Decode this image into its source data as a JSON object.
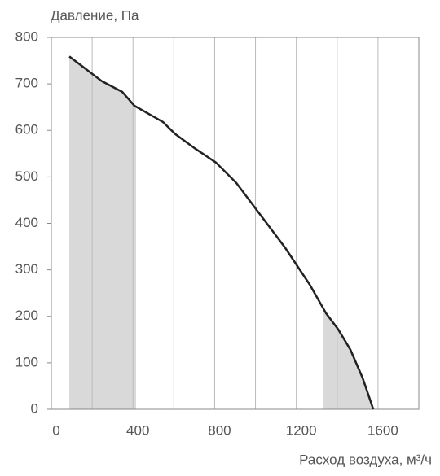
{
  "chart_data": {
    "type": "line",
    "y_label": "Давление, Па",
    "x_label": "Расход воздуха, м³/ч",
    "x": [
      88,
      247,
      347,
      407,
      547,
      607,
      707,
      806,
      906,
      1026,
      1146,
      1266,
      1345,
      1405,
      1465,
      1525,
      1577
    ],
    "series": [
      {
        "color": "#222222",
        "values": [
          759,
          706,
          683,
          653,
          618,
          592,
          560,
          531,
          487,
          417,
          347,
          268,
          207,
          172,
          128,
          67,
          0
        ]
      }
    ],
    "shaded_ranges": [
      [
        88,
        415
      ],
      [
        1333,
        1577
      ]
    ],
    "shade_color": "#d9d9d9",
    "xlim": [
      0,
      1800
    ],
    "xticks": [
      0,
      400,
      800,
      1200,
      1600
    ],
    "x_minor_grid": [
      200,
      600,
      1000,
      1400,
      1800
    ],
    "ylim": [
      0,
      800
    ],
    "yticks": [
      0,
      100,
      200,
      300,
      400,
      500,
      600,
      700,
      800
    ],
    "grid": true
  }
}
